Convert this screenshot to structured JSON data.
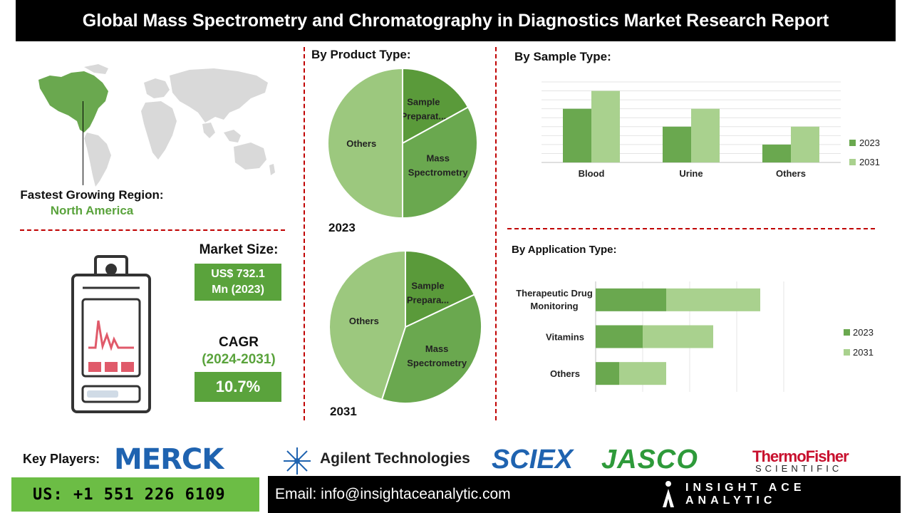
{
  "header": {
    "title": "Global Mass Spectrometry and Chromatography in Diagnostics Market Research Report"
  },
  "region": {
    "label": "Fastest Growing Region:",
    "value": "North America"
  },
  "market_size": {
    "label": "Market Size:",
    "value_line1": "US$ 732.1",
    "value_line2": "Mn (2023)"
  },
  "cagr": {
    "label": "CAGR",
    "years": "(2024-2031)",
    "value": "10.7%"
  },
  "colors": {
    "dark_green": "#5a9a3a",
    "mid_green": "#6aa84f",
    "light_green": "#9cc87e",
    "pale_green": "#a9d18e",
    "dash_red": "#c00000",
    "phone_bg": "#6cbd45"
  },
  "chart_data": [
    {
      "type": "pie",
      "title": "By Product Type:",
      "year": "2023",
      "slices": [
        {
          "label_line1": "Sample",
          "label_line2": "Preparat...",
          "value": 17
        },
        {
          "label_line1": "Mass",
          "label_line2": "Spectrometry",
          "value": 33
        },
        {
          "label_line1": "Others",
          "label_line2": "",
          "value": 50
        }
      ]
    },
    {
      "type": "pie",
      "year": "2031",
      "slices": [
        {
          "label_line1": "Sample",
          "label_line2": "Prepara...",
          "value": 18
        },
        {
          "label_line1": "Mass",
          "label_line2": "Spectrometry",
          "value": 37
        },
        {
          "label_line1": "Others",
          "label_line2": "",
          "value": 45
        }
      ]
    },
    {
      "type": "bar",
      "title": "By Sample Type:",
      "categories": [
        "Blood",
        "Urine",
        "Others"
      ],
      "series": [
        {
          "name": "2023",
          "values": [
            3,
            2,
            1
          ]
        },
        {
          "name": "2031",
          "values": [
            4,
            3,
            2
          ]
        }
      ],
      "ylim": [
        0,
        4.5
      ],
      "grid": true,
      "legend": "right"
    },
    {
      "type": "bar",
      "orientation": "horizontal",
      "stacked": true,
      "title": "By Application Type:",
      "categories": [
        {
          "line1": "Therapeutic Drug",
          "line2": "Monitoring"
        },
        {
          "line1": "Vitamins",
          "line2": ""
        },
        {
          "line1": "Others",
          "line2": ""
        }
      ],
      "series": [
        {
          "name": "2023",
          "values": [
            3,
            2,
            1
          ]
        },
        {
          "name": "2031",
          "values": [
            4,
            3,
            2
          ]
        }
      ],
      "xlim": [
        0,
        8
      ],
      "grid": true,
      "legend": "right"
    }
  ],
  "footer": {
    "key_players_label": "Key Players:",
    "logos": {
      "merck": "MERCK",
      "agilent": "Agilent Technologies",
      "sciex": "SCIEX",
      "jasco": "JASCO",
      "thermo_line1": "ThermoFisher",
      "thermo_line2": "SCIENTIFIC"
    },
    "phone": "US: +1 551 226 6109",
    "email": "Email: info@insightaceanalytic.com",
    "brand": "INSIGHT ACE ANALYTIC"
  }
}
